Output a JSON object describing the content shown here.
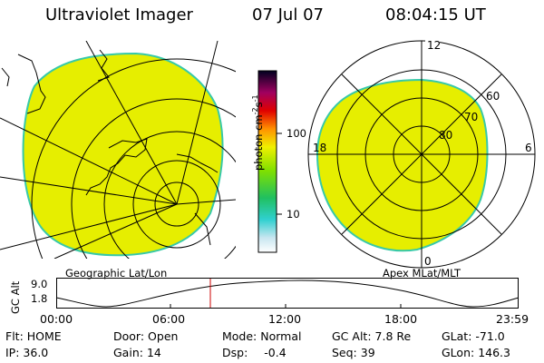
{
  "header": {
    "instrument": "Ultraviolet Imager",
    "date": "07 Jul 07",
    "time": "08:04:15 UT"
  },
  "colors": {
    "aurora_fill": "#e6ee00",
    "aurora_edge": "#37c9a8",
    "grid_line": "#000000",
    "time_marker": "#cc0000",
    "background": "#ffffff"
  },
  "geo_panel": {
    "label": "Geographic Lat/Lon"
  },
  "polar_panel": {
    "label": "Apex MLat/MLT",
    "mlt_labels": [
      "12",
      "18",
      "6",
      "0"
    ],
    "lat_labels": [
      "60",
      "70",
      "80"
    ]
  },
  "colorbar": {
    "unit_label": "photon cm",
    "unit_sup1": "-2",
    "unit_mid": "s",
    "unit_sup2": "-1",
    "ticks": [
      "100",
      "10"
    ],
    "scale": "log"
  },
  "altitude_plot": {
    "axis_label": "GC Alt",
    "y_ticks": [
      "9.0",
      "1.8"
    ],
    "x_ticks": [
      "00:00",
      "06:00",
      "12:00",
      "18:00",
      "23:59"
    ],
    "current_time_marker": "08:04"
  },
  "info": {
    "filter_label": "Flt:",
    "filter_value": "HOME",
    "door_label": "Door:",
    "door_value": "Open",
    "mode_label": "Mode:",
    "mode_value": "Normal",
    "gcalt_label": "GC Alt:",
    "gcalt_value": "7.8 Re",
    "glat_label": "GLat:",
    "glat_value": "-71.0",
    "ip_label": "IP:",
    "ip_value": "36.0",
    "gain_label": "Gain:",
    "gain_value": "14",
    "dsp_label": "Dsp:",
    "dsp_value": "-0.4",
    "seq_label": "Seq:",
    "seq_value": "39",
    "glon_label": "GLon:",
    "glon_value": "146.3"
  }
}
